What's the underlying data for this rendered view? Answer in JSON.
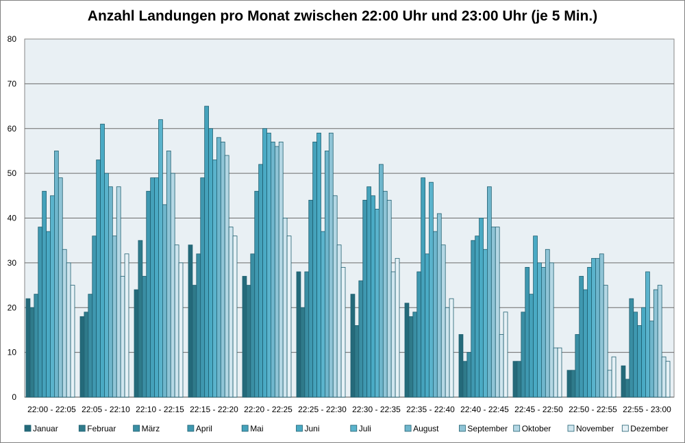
{
  "chart_data": {
    "type": "bar",
    "title": "Anzahl Landungen pro Monat zwischen 22:00 Uhr und 23:00 Uhr (je 5 Min.)",
    "xlabel": "",
    "ylabel": "",
    "ylim": [
      0,
      80
    ],
    "yticks": [
      0,
      10,
      20,
      30,
      40,
      50,
      60,
      70,
      80
    ],
    "grid": true,
    "legend_position": "bottom",
    "categories": [
      "22:00 - 22:05",
      "22:05 - 22:10",
      "22:10 - 22:15",
      "22:15 - 22:20",
      "22:20 - 22:25",
      "22:25 - 22:30",
      "22:30 - 22:35",
      "22:35 - 22:40",
      "22:40 - 22:45",
      "22:45 - 22:50",
      "22:50 - 22:55",
      "22:55 - 23:00"
    ],
    "series": [
      {
        "name": "Januar",
        "color": "#246a7a",
        "values": [
          22,
          18,
          24,
          34,
          27,
          28,
          23,
          21,
          14,
          8,
          6,
          7
        ]
      },
      {
        "name": "Februar",
        "color": "#2f7a8a",
        "values": [
          20,
          19,
          35,
          25,
          25,
          20,
          16,
          18,
          8,
          8,
          6,
          4
        ]
      },
      {
        "name": "März",
        "color": "#3a8ea3",
        "values": [
          23,
          23,
          27,
          32,
          32,
          28,
          26,
          19,
          10,
          19,
          14,
          22
        ]
      },
      {
        "name": "April",
        "color": "#3f98b0",
        "values": [
          38,
          36,
          46,
          49,
          46,
          44,
          44,
          28,
          35,
          29,
          27,
          19
        ]
      },
      {
        "name": "Mai",
        "color": "#45a2bb",
        "values": [
          46,
          53,
          49,
          65,
          52,
          57,
          47,
          49,
          36,
          23,
          24,
          16
        ]
      },
      {
        "name": "Juni",
        "color": "#4aaac4",
        "values": [
          37,
          61,
          49,
          60,
          60,
          59,
          45,
          32,
          40,
          36,
          29,
          20
        ]
      },
      {
        "name": "Juli",
        "color": "#5ab3cc",
        "values": [
          45,
          50,
          62,
          53,
          59,
          37,
          42,
          48,
          33,
          30,
          31,
          28
        ]
      },
      {
        "name": "August",
        "color": "#6fb6cc",
        "values": [
          55,
          47,
          43,
          58,
          57,
          55,
          52,
          37,
          47,
          29,
          31,
          17
        ]
      },
      {
        "name": "September",
        "color": "#8fc4d6",
        "values": [
          49,
          36,
          55,
          57,
          56,
          59,
          46,
          41,
          38,
          33,
          32,
          24
        ]
      },
      {
        "name": "Oktober",
        "color": "#b4d7e4",
        "values": [
          33,
          47,
          50,
          54,
          57,
          45,
          44,
          34,
          38,
          30,
          25,
          25
        ]
      },
      {
        "name": "November",
        "color": "#cfe5ee",
        "values": [
          30,
          27,
          34,
          38,
          40,
          34,
          28,
          20,
          14,
          11,
          6,
          9
        ]
      },
      {
        "name": "Dezember",
        "color": "#e6f1f6",
        "values": [
          25,
          32,
          30,
          36,
          36,
          29,
          31,
          22,
          19,
          11,
          9,
          8
        ]
      }
    ]
  }
}
